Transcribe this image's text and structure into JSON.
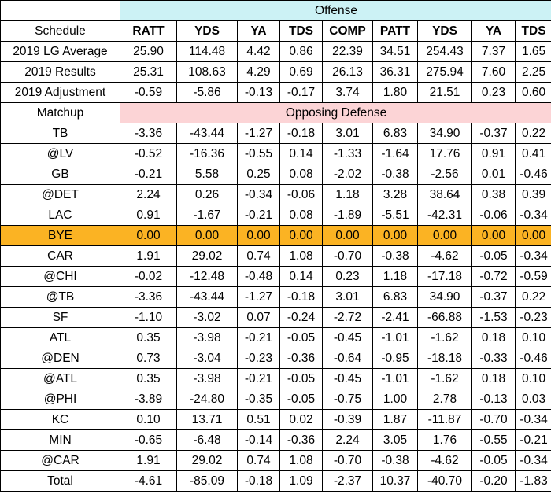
{
  "offense_label": "Offense",
  "opposing_defense_label": "Opposing Defense",
  "schedule_label": "Schedule",
  "matchup_label": "Matchup",
  "columns": [
    "RATT",
    "YDS",
    "YA",
    "TDS",
    "COMP",
    "PATT",
    "YDS",
    "YA",
    "TDS"
  ],
  "summary_rows": [
    {
      "label": "2019 LG Average",
      "values": [
        "25.90",
        "114.48",
        "4.42",
        "0.86",
        "22.39",
        "34.51",
        "254.43",
        "7.37",
        "1.65"
      ]
    },
    {
      "label": "2019 Results",
      "values": [
        "25.31",
        "108.63",
        "4.29",
        "0.69",
        "26.13",
        "36.31",
        "275.94",
        "7.60",
        "2.25"
      ]
    },
    {
      "label": "2019 Adjustment",
      "values": [
        "-0.59",
        "-5.86",
        "-0.13",
        "-0.17",
        "3.74",
        "1.80",
        "21.51",
        "0.23",
        "0.60"
      ]
    }
  ],
  "matchup_rows": [
    {
      "label": "TB",
      "values": [
        "-3.36",
        "-43.44",
        "-1.27",
        "-0.18",
        "3.01",
        "6.83",
        "34.90",
        "-0.37",
        "0.22"
      ]
    },
    {
      "label": "@LV",
      "values": [
        "-0.52",
        "-16.36",
        "-0.55",
        "0.14",
        "-1.33",
        "-1.64",
        "17.76",
        "0.91",
        "0.41"
      ]
    },
    {
      "label": "GB",
      "values": [
        "-0.21",
        "5.58",
        "0.25",
        "0.08",
        "-2.02",
        "-0.38",
        "-2.56",
        "0.01",
        "-0.46"
      ]
    },
    {
      "label": "@DET",
      "values": [
        "2.24",
        "0.26",
        "-0.34",
        "-0.06",
        "1.18",
        "3.28",
        "38.64",
        "0.38",
        "0.39"
      ]
    },
    {
      "label": "LAC",
      "values": [
        "0.91",
        "-1.67",
        "-0.21",
        "0.08",
        "-1.89",
        "-5.51",
        "-42.31",
        "-0.06",
        "-0.34"
      ]
    },
    {
      "label": "BYE",
      "values": [
        "0.00",
        "0.00",
        "0.00",
        "0.00",
        "0.00",
        "0.00",
        "0.00",
        "0.00",
        "0.00"
      ],
      "bye": true
    },
    {
      "label": "CAR",
      "values": [
        "1.91",
        "29.02",
        "0.74",
        "1.08",
        "-0.70",
        "-0.38",
        "-4.62",
        "-0.05",
        "-0.34"
      ]
    },
    {
      "label": "@CHI",
      "values": [
        "-0.02",
        "-12.48",
        "-0.48",
        "0.14",
        "0.23",
        "1.18",
        "-17.18",
        "-0.72",
        "-0.59"
      ]
    },
    {
      "label": "@TB",
      "values": [
        "-3.36",
        "-43.44",
        "-1.27",
        "-0.18",
        "3.01",
        "6.83",
        "34.90",
        "-0.37",
        "0.22"
      ]
    },
    {
      "label": "SF",
      "values": [
        "-1.10",
        "-3.02",
        "0.07",
        "-0.24",
        "-2.72",
        "-2.41",
        "-66.88",
        "-1.53",
        "-0.23"
      ]
    },
    {
      "label": "ATL",
      "values": [
        "0.35",
        "-3.98",
        "-0.21",
        "-0.05",
        "-0.45",
        "-1.01",
        "-1.62",
        "0.18",
        "0.10"
      ]
    },
    {
      "label": "@DEN",
      "values": [
        "0.73",
        "-3.04",
        "-0.23",
        "-0.36",
        "-0.64",
        "-0.95",
        "-18.18",
        "-0.33",
        "-0.46"
      ]
    },
    {
      "label": "@ATL",
      "values": [
        "0.35",
        "-3.98",
        "-0.21",
        "-0.05",
        "-0.45",
        "-1.01",
        "-1.62",
        "0.18",
        "0.10"
      ]
    },
    {
      "label": "@PHI",
      "values": [
        "-3.89",
        "-24.80",
        "-0.35",
        "-0.05",
        "-0.75",
        "1.00",
        "2.78",
        "-0.13",
        "0.03"
      ]
    },
    {
      "label": "KC",
      "values": [
        "0.10",
        "13.71",
        "0.51",
        "0.02",
        "-0.39",
        "1.87",
        "-11.87",
        "-0.70",
        "-0.34"
      ]
    },
    {
      "label": "MIN",
      "values": [
        "-0.65",
        "-6.48",
        "-0.14",
        "-0.36",
        "2.24",
        "3.05",
        "1.76",
        "-0.55",
        "-0.21"
      ]
    },
    {
      "label": "@CAR",
      "values": [
        "1.91",
        "29.02",
        "0.74",
        "1.08",
        "-0.70",
        "-0.38",
        "-4.62",
        "-0.05",
        "-0.34"
      ]
    }
  ],
  "total_row": {
    "label": "Total",
    "values": [
      "-4.61",
      "-85.09",
      "-0.18",
      "1.09",
      "-2.37",
      "10.37",
      "-40.70",
      "-0.20",
      "-1.83"
    ]
  },
  "colors": {
    "offense_band": "#ccf2f5",
    "defense_band": "#fcd4d6",
    "bye_highlight": "#fbb323",
    "grid_line": "#000000"
  }
}
